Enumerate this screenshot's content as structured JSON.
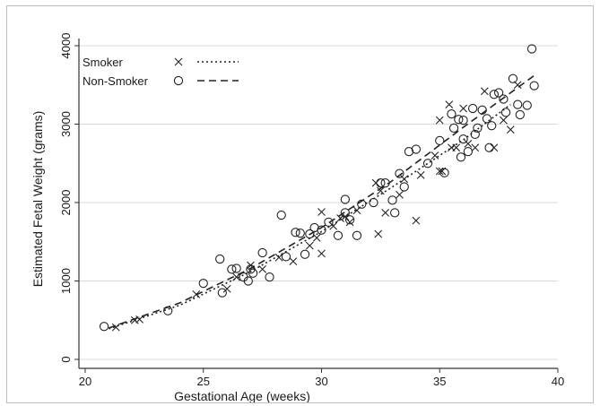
{
  "chart_data": {
    "type": "scatter",
    "title": "",
    "xlabel": "Gestational Age (weeks)",
    "ylabel": "Estimated Fetal Weight (grams)",
    "xlim": [
      20,
      40
    ],
    "ylim": [
      0,
      4000
    ],
    "xticks": [
      20,
      25,
      30,
      35,
      40
    ],
    "yticks": [
      0,
      1000,
      2000,
      3000,
      4000
    ],
    "grid": true,
    "legend_position": "top-left",
    "colors": {
      "marker": "#222222",
      "grid": "#d9d9d9",
      "axis": "#333333"
    },
    "series": [
      {
        "name": "Smoker",
        "marker": "x",
        "fit_line": "dotted",
        "points": [
          [
            21.3,
            410
          ],
          [
            22.1,
            500
          ],
          [
            22.3,
            510
          ],
          [
            24.7,
            830
          ],
          [
            26.0,
            900
          ],
          [
            26.4,
            1050
          ],
          [
            27.0,
            1200
          ],
          [
            27.5,
            1150
          ],
          [
            28.2,
            1300
          ],
          [
            28.8,
            1250
          ],
          [
            29.5,
            1450
          ],
          [
            29.8,
            1550
          ],
          [
            30.0,
            1880
          ],
          [
            30.0,
            1350
          ],
          [
            30.5,
            1700
          ],
          [
            30.8,
            1800
          ],
          [
            31.0,
            1820
          ],
          [
            31.2,
            1750
          ],
          [
            31.5,
            1900
          ],
          [
            32.3,
            2250
          ],
          [
            32.4,
            1600
          ],
          [
            32.5,
            2150
          ],
          [
            32.7,
            1870
          ],
          [
            33.3,
            2100
          ],
          [
            33.5,
            2300
          ],
          [
            34.0,
            1770
          ],
          [
            34.2,
            2350
          ],
          [
            34.8,
            2600
          ],
          [
            35.0,
            3050
          ],
          [
            35.0,
            2400
          ],
          [
            35.1,
            2400
          ],
          [
            35.4,
            3250
          ],
          [
            35.5,
            2700
          ],
          [
            35.7,
            2700
          ],
          [
            36.0,
            3200
          ],
          [
            36.2,
            2750
          ],
          [
            36.5,
            2700
          ],
          [
            36.9,
            3420
          ],
          [
            37.3,
            2700
          ],
          [
            37.7,
            3050
          ],
          [
            38.0,
            2930
          ],
          [
            38.3,
            3500
          ]
        ],
        "fit_curve": [
          [
            21,
            390
          ],
          [
            24,
            690
          ],
          [
            27,
            1120
          ],
          [
            30,
            1630
          ],
          [
            33,
            2200
          ],
          [
            36,
            2800
          ],
          [
            38,
            3250
          ]
        ]
      },
      {
        "name": "Non-Smoker",
        "marker": "o",
        "fit_line": "dashed",
        "points": [
          [
            20.8,
            420
          ],
          [
            23.5,
            620
          ],
          [
            25.0,
            970
          ],
          [
            25.7,
            1280
          ],
          [
            25.8,
            850
          ],
          [
            26.2,
            1150
          ],
          [
            26.4,
            1160
          ],
          [
            26.7,
            1050
          ],
          [
            26.9,
            1000
          ],
          [
            27.0,
            1150
          ],
          [
            27.1,
            1100
          ],
          [
            27.5,
            1360
          ],
          [
            27.8,
            1050
          ],
          [
            28.3,
            1840
          ],
          [
            28.5,
            1310
          ],
          [
            28.9,
            1620
          ],
          [
            29.1,
            1610
          ],
          [
            29.3,
            1340
          ],
          [
            29.5,
            1600
          ],
          [
            29.7,
            1680
          ],
          [
            30.0,
            1650
          ],
          [
            30.3,
            1750
          ],
          [
            30.7,
            1580
          ],
          [
            31.0,
            2040
          ],
          [
            31.0,
            1870
          ],
          [
            31.2,
            1780
          ],
          [
            31.5,
            1580
          ],
          [
            31.7,
            1980
          ],
          [
            32.2,
            2000
          ],
          [
            32.5,
            2250
          ],
          [
            32.7,
            2250
          ],
          [
            33.0,
            2030
          ],
          [
            33.1,
            1870
          ],
          [
            33.3,
            2370
          ],
          [
            33.5,
            2200
          ],
          [
            33.7,
            2650
          ],
          [
            34.0,
            2680
          ],
          [
            34.5,
            2500
          ],
          [
            35.0,
            2790
          ],
          [
            35.2,
            2380
          ],
          [
            35.5,
            3130
          ],
          [
            35.6,
            2950
          ],
          [
            35.8,
            3060
          ],
          [
            35.9,
            2580
          ],
          [
            36.0,
            3050
          ],
          [
            36.0,
            2810
          ],
          [
            36.2,
            2650
          ],
          [
            36.4,
            3200
          ],
          [
            36.5,
            2870
          ],
          [
            36.6,
            2950
          ],
          [
            36.8,
            3180
          ],
          [
            37.0,
            3070
          ],
          [
            37.1,
            2700
          ],
          [
            37.2,
            2980
          ],
          [
            37.3,
            3380
          ],
          [
            37.5,
            3400
          ],
          [
            37.7,
            3320
          ],
          [
            37.8,
            3150
          ],
          [
            38.1,
            3580
          ],
          [
            38.3,
            3250
          ],
          [
            38.4,
            3120
          ],
          [
            38.7,
            3240
          ],
          [
            38.9,
            3960
          ],
          [
            39.0,
            3490
          ]
        ],
        "fit_curve": [
          [
            21,
            400
          ],
          [
            24,
            720
          ],
          [
            27,
            1160
          ],
          [
            30,
            1680
          ],
          [
            33,
            2280
          ],
          [
            36,
            2960
          ],
          [
            39,
            3620
          ]
        ]
      }
    ]
  }
}
